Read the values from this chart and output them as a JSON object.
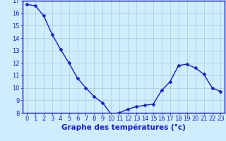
{
  "x": [
    0,
    1,
    2,
    3,
    4,
    5,
    6,
    7,
    8,
    9,
    10,
    11,
    12,
    13,
    14,
    15,
    16,
    17,
    18,
    19,
    20,
    21,
    22,
    23
  ],
  "y": [
    16.7,
    16.6,
    15.8,
    14.3,
    13.1,
    12.0,
    10.8,
    10.0,
    9.3,
    8.8,
    7.9,
    8.0,
    8.3,
    8.5,
    8.6,
    8.7,
    9.8,
    10.5,
    11.8,
    11.9,
    11.6,
    11.1,
    10.0,
    9.7
  ],
  "line_color": "#1a1acc",
  "marker": "D",
  "marker_size": 2.5,
  "bg_color": "#cceeff",
  "grid_color": "#aacccc",
  "xlabel": "Graphe des températures (°c)",
  "xlabel_color": "#1a1acc",
  "ylim": [
    8,
    17
  ],
  "yticks": [
    8,
    9,
    10,
    11,
    12,
    13,
    14,
    15,
    16,
    17
  ],
  "xticks": [
    0,
    1,
    2,
    3,
    4,
    5,
    6,
    7,
    8,
    9,
    10,
    11,
    12,
    13,
    14,
    15,
    16,
    17,
    18,
    19,
    20,
    21,
    22,
    23
  ],
  "tick_color": "#1a1acc",
  "tick_fontsize": 6.0,
  "xlabel_fontsize": 7.5,
  "spine_color": "#1a1acc",
  "linewidth": 1.0,
  "spine_linewidth": 1.0
}
